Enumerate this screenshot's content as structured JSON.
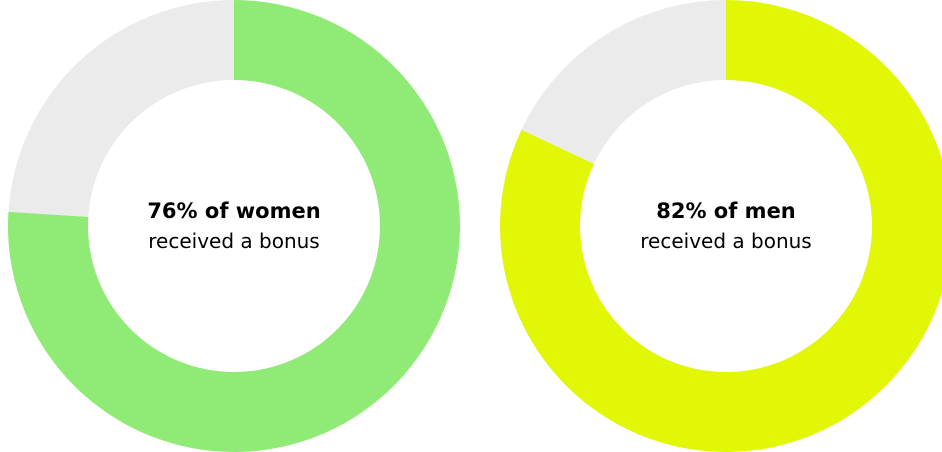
{
  "colors": {
    "remainder": "#ebebeb",
    "women": "#8fea76",
    "men": "#e1f705"
  },
  "chart_data": [
    {
      "type": "pie",
      "variant": "donut",
      "slices": [
        {
          "value": 76,
          "color": "#8fea76"
        },
        {
          "value": 24,
          "color": "#ebebeb"
        }
      ],
      "annotation": {
        "headline": "76% of women",
        "subline": "received a bonus"
      }
    },
    {
      "type": "pie",
      "variant": "donut",
      "slices": [
        {
          "value": 82,
          "color": "#e1f705"
        },
        {
          "value": 18,
          "color": "#ebebeb"
        }
      ],
      "annotation": {
        "headline": "82% of men",
        "subline": "received a bonus"
      }
    }
  ]
}
